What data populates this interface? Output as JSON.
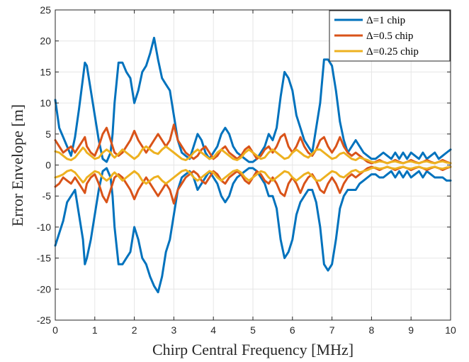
{
  "chart_data": {
    "type": "line",
    "title": "",
    "xlabel": "Chirp Central Frequency [MHz]",
    "ylabel": "Error Envelope [m]",
    "xlim": [
      0,
      10
    ],
    "ylim": [
      -25,
      25
    ],
    "xticks": [
      "0",
      "1",
      "2",
      "3",
      "4",
      "5",
      "6",
      "7",
      "8",
      "9",
      "10"
    ],
    "yticks": [
      "25",
      "20",
      "15",
      "10",
      "5",
      "0",
      "-5",
      "-10",
      "-15",
      "-20",
      "-25"
    ],
    "grid": true,
    "legend_position": "top-right",
    "x": [
      0,
      0.1,
      0.2,
      0.3,
      0.4,
      0.5,
      0.6,
      0.7,
      0.75,
      0.8,
      0.9,
      1.0,
      1.1,
      1.2,
      1.3,
      1.4,
      1.45,
      1.5,
      1.6,
      1.7,
      1.8,
      1.9,
      2.0,
      2.1,
      2.2,
      2.3,
      2.4,
      2.5,
      2.6,
      2.7,
      2.8,
      2.9,
      3.0,
      3.1,
      3.2,
      3.3,
      3.4,
      3.5,
      3.6,
      3.7,
      3.8,
      3.9,
      4.0,
      4.1,
      4.2,
      4.3,
      4.4,
      4.5,
      4.6,
      4.7,
      4.8,
      4.9,
      5.0,
      5.1,
      5.2,
      5.3,
      5.4,
      5.5,
      5.6,
      5.7,
      5.8,
      5.9,
      6.0,
      6.1,
      6.2,
      6.3,
      6.4,
      6.5,
      6.6,
      6.7,
      6.8,
      6.9,
      7.0,
      7.1,
      7.2,
      7.3,
      7.4,
      7.5,
      7.6,
      7.7,
      7.8,
      7.9,
      8.0,
      8.1,
      8.2,
      8.3,
      8.4,
      8.5,
      8.6,
      8.7,
      8.8,
      8.9,
      9.0,
      9.1,
      9.2,
      9.3,
      9.4,
      9.5,
      9.6,
      9.7,
      9.8,
      9.9,
      10.0
    ],
    "series": [
      {
        "name": "Δ=1 chip",
        "color": "#0072BD",
        "upper": [
          10.5,
          6,
          4.5,
          3,
          1.5,
          4.5,
          9,
          14,
          16.5,
          16,
          12,
          8,
          4,
          1,
          0.5,
          2,
          5,
          10,
          16.5,
          16.5,
          15,
          14,
          10,
          12,
          15,
          16,
          18,
          20.5,
          17,
          14,
          13,
          12,
          8,
          4,
          2,
          1.5,
          1,
          3,
          5,
          4,
          2,
          1,
          2,
          3,
          5,
          6,
          5,
          3,
          2,
          1.5,
          1,
          0.5,
          0.5,
          1,
          2,
          3,
          5,
          4,
          6,
          11,
          15,
          14,
          12,
          8,
          6,
          4,
          3,
          2,
          6,
          10,
          17,
          17,
          16,
          12,
          7,
          4,
          2,
          3,
          4,
          3,
          2,
          1.5,
          1,
          1,
          1.5,
          2,
          1.5,
          1,
          2,
          1,
          2,
          1,
          2,
          1.5,
          1,
          2,
          1,
          1.5,
          2,
          1,
          1.5,
          2,
          2.5
        ],
        "lower": [
          -13,
          -11,
          -9,
          -6,
          -5,
          -4,
          -8,
          -12,
          -16,
          -15,
          -12,
          -8,
          -4,
          -1,
          -0.5,
          -2,
          -5,
          -10,
          -16,
          -16,
          -15,
          -14,
          -10,
          -12,
          -15,
          -16,
          -18,
          -19.5,
          -20.5,
          -18,
          -14,
          -12,
          -8,
          -4,
          -2,
          -1.5,
          -1,
          -2,
          -4,
          -3,
          -2,
          -1,
          -2,
          -3,
          -5,
          -6,
          -5,
          -3,
          -2,
          -1.5,
          -1,
          -0.5,
          -0.5,
          -1,
          -2,
          -3,
          -5,
          -5,
          -7,
          -12,
          -15,
          -14,
          -12,
          -8,
          -6,
          -5,
          -4,
          -4,
          -6,
          -10,
          -16,
          -17,
          -16,
          -12,
          -7,
          -5,
          -4,
          -4,
          -4,
          -3,
          -2.5,
          -2,
          -1.5,
          -1.5,
          -2,
          -2,
          -1.5,
          -1,
          -2,
          -1,
          -2,
          -1,
          -2,
          -1.5,
          -1,
          -2,
          -1,
          -1.5,
          -2,
          -2,
          -2,
          -2.5,
          -2.5
        ]
      },
      {
        "name": "Δ=0.5 chip",
        "color": "#D95319",
        "upper": [
          4,
          3,
          2,
          2.5,
          3,
          2,
          3,
          4,
          4.5,
          3,
          2,
          1.5,
          3,
          5,
          6,
          4,
          3,
          2,
          1.5,
          2,
          3,
          4,
          5.5,
          4,
          3,
          2,
          3,
          4,
          5,
          4,
          3,
          4,
          6.5,
          4,
          3,
          2,
          1.5,
          1,
          1.5,
          2.5,
          3,
          2,
          1,
          1.5,
          2.5,
          3,
          2,
          1.5,
          1,
          1.5,
          2.5,
          3,
          2,
          1,
          1.5,
          2.5,
          3,
          2,
          3,
          4.5,
          5,
          3,
          2,
          3,
          4.5,
          3,
          2,
          1.5,
          2.5,
          4,
          4.5,
          3,
          2,
          3,
          4.5,
          3,
          2,
          1.5,
          2,
          1.5,
          1,
          0.5,
          0.3,
          0.5,
          0.8,
          0.5,
          0.3,
          0.5,
          0.8,
          0.5,
          0.3,
          0.5,
          0.8,
          0.5,
          0.3,
          0.5,
          0.8,
          0.5,
          0.3,
          0.5,
          0.8,
          0.5,
          0.3
        ],
        "lower": [
          -3.5,
          -3,
          -2,
          -2.5,
          -3,
          -2,
          -3,
          -4,
          -4.5,
          -3,
          -2,
          -1.5,
          -3,
          -5,
          -6,
          -4,
          -3,
          -2,
          -1.5,
          -2,
          -3,
          -4,
          -5.5,
          -4,
          -3,
          -2,
          -3,
          -4,
          -5,
          -4,
          -3,
          -4,
          -6.2,
          -4,
          -3,
          -2,
          -1.5,
          -1,
          -1.5,
          -2.5,
          -3,
          -2,
          -1,
          -1.5,
          -2.5,
          -3,
          -2,
          -1.5,
          -1,
          -1.5,
          -2.5,
          -3,
          -2,
          -1,
          -1.5,
          -2.5,
          -3,
          -2,
          -3,
          -4.5,
          -5,
          -3,
          -2,
          -3,
          -4.5,
          -3,
          -2,
          -1.5,
          -2.5,
          -4,
          -4.5,
          -3,
          -2,
          -3,
          -4.5,
          -3,
          -2,
          -1.5,
          -2,
          -1.5,
          -1,
          -0.5,
          -0.3,
          -0.5,
          -0.8,
          -0.5,
          -0.3,
          -0.5,
          -0.8,
          -0.5,
          -0.3,
          -0.5,
          -0.8,
          -0.5,
          -0.3,
          -0.5,
          -0.8,
          -0.5,
          -0.3,
          -0.5,
          -0.8,
          -0.5,
          -0.3
        ]
      },
      {
        "name": "Δ=0.25 chip",
        "color": "#EDB120",
        "upper": [
          2.2,
          2,
          1.5,
          1,
          0.8,
          1.2,
          2,
          2.8,
          2.5,
          2,
          1.5,
          1,
          1.2,
          2,
          2.5,
          2,
          1.5,
          1.2,
          1.8,
          2.5,
          2,
          1.5,
          1,
          1.5,
          2.5,
          3,
          2.5,
          2,
          1.8,
          2.5,
          3,
          2.5,
          2,
          1.5,
          1,
          0.8,
          1.2,
          2,
          2.5,
          2,
          1.5,
          1,
          1.2,
          2,
          2.5,
          2,
          1.5,
          1,
          0.8,
          1.2,
          2,
          2.5,
          2,
          1.5,
          1,
          1.2,
          2,
          2.5,
          2,
          1.5,
          1,
          1.2,
          2,
          2.5,
          2,
          1.5,
          1.2,
          1.8,
          2.5,
          2.5,
          2,
          1.5,
          1,
          1.2,
          1.8,
          2,
          1.5,
          1,
          0.8,
          1.2,
          1,
          0.8,
          0.5,
          0.4,
          0.6,
          0.5,
          0.3,
          0.5,
          0.6,
          0.4,
          0.3,
          0.5,
          0.6,
          0.4,
          0.3,
          0.5,
          0.6,
          0.4,
          0.3,
          0.5,
          0.6,
          0.4,
          0.3
        ],
        "lower": [
          -2,
          -1.8,
          -1.5,
          -1,
          -0.8,
          -1.2,
          -2,
          -2.8,
          -2.5,
          -2,
          -1.5,
          -1,
          -1.2,
          -2,
          -2.5,
          -2,
          -1.5,
          -1.2,
          -1.8,
          -2.5,
          -2,
          -1.5,
          -1,
          -1.5,
          -2.5,
          -3,
          -2.5,
          -2,
          -1.8,
          -2.5,
          -3,
          -2.5,
          -2,
          -1.5,
          -1,
          -0.8,
          -1.2,
          -2,
          -2.5,
          -2,
          -1.5,
          -1,
          -1.2,
          -2,
          -2.5,
          -2,
          -1.5,
          -1,
          -0.8,
          -1.2,
          -2,
          -2.5,
          -2,
          -1.5,
          -1,
          -1.2,
          -2,
          -2.5,
          -2,
          -1.5,
          -1,
          -1.2,
          -2,
          -2.5,
          -2,
          -1.5,
          -1.2,
          -1.8,
          -2.5,
          -2.5,
          -2,
          -1.5,
          -1,
          -1.2,
          -1.8,
          -2,
          -1.5,
          -1,
          -0.8,
          -1.2,
          -1,
          -0.8,
          -0.5,
          -0.4,
          -0.6,
          -0.5,
          -0.3,
          -0.5,
          -0.6,
          -0.4,
          -0.3,
          -0.5,
          -0.6,
          -0.4,
          -0.3,
          -0.5,
          -0.6,
          -0.4,
          -0.3,
          -0.5,
          -0.6,
          -0.4,
          -0.3
        ]
      }
    ]
  }
}
